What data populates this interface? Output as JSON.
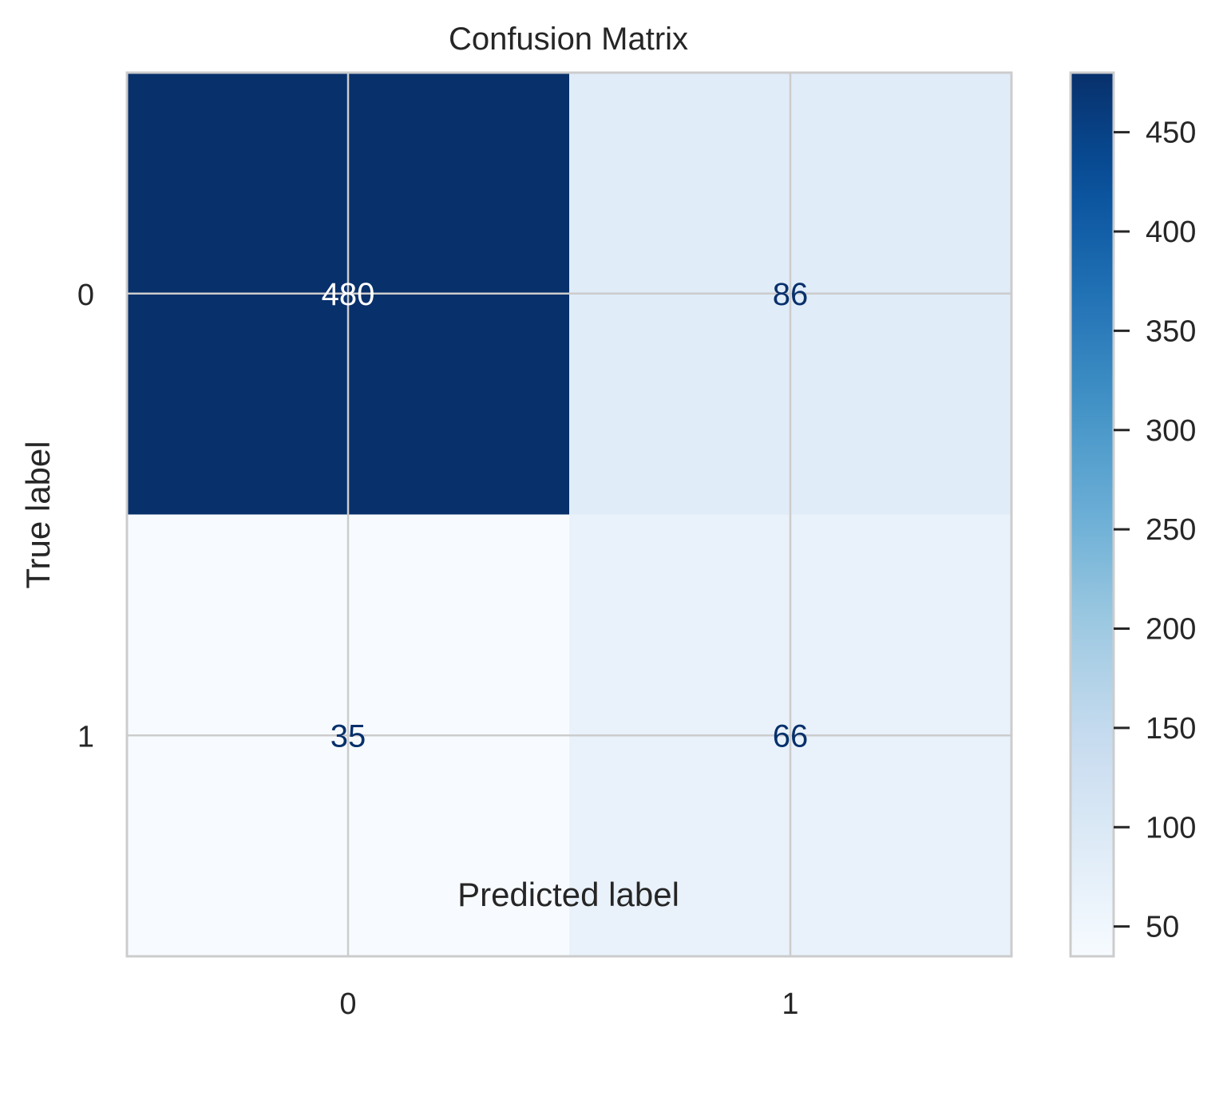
{
  "chart_data": {
    "type": "heatmap",
    "title": "Confusion Matrix",
    "xlabel": "Predicted label",
    "ylabel": "True label",
    "x_categories": [
      "0",
      "1"
    ],
    "y_categories": [
      "0",
      "1"
    ],
    "matrix": [
      [
        480,
        86
      ],
      [
        35,
        66
      ]
    ],
    "value_labels": [
      [
        "480",
        "86"
      ],
      [
        "35",
        "66"
      ]
    ],
    "colormap": "Blues",
    "colorbar": {
      "vmin": 35,
      "vmax": 480,
      "ticks": [
        50,
        100,
        150,
        200,
        250,
        300,
        350,
        400,
        450
      ],
      "tick_labels": [
        "50",
        "100",
        "150",
        "200",
        "250",
        "300",
        "350",
        "400",
        "450"
      ]
    },
    "grid": true,
    "colors": {
      "text_dark": "#08306b",
      "text_light": "#ffffff",
      "grid": "#cccccc",
      "label_text": "#262626"
    }
  }
}
